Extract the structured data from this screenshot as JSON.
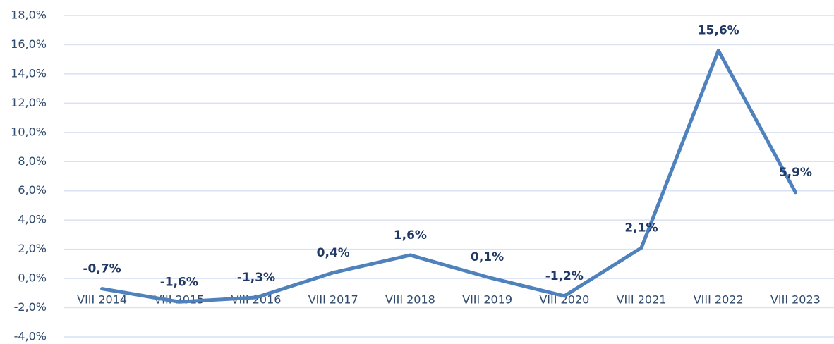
{
  "chart_data": {
    "type": "line",
    "categories": [
      "VIII 2014",
      "VIII 2015",
      "VIII 2016",
      "VIII 2017",
      "VIII 2018",
      "VIII 2019",
      "VIII 2020",
      "VIII 2021",
      "VIII 2022",
      "VIII 2023"
    ],
    "values": [
      -0.7,
      -1.6,
      -1.3,
      0.4,
      1.6,
      0.1,
      -1.2,
      2.1,
      15.6,
      5.9
    ],
    "value_labels": [
      "-0,7%",
      "-1,6%",
      "-1,3%",
      "0,4%",
      "1,6%",
      "0,1%",
      "-1,2%",
      "2,1%",
      "15,6%",
      "5,9%"
    ],
    "color": "#4f81bd",
    "ylim": [
      -4,
      18
    ],
    "yticks": [
      {
        "value": -4,
        "label": "-4,0%"
      },
      {
        "value": -2,
        "label": "-2,0%"
      },
      {
        "value": 0,
        "label": "0,0%"
      },
      {
        "value": 2,
        "label": "2,0%"
      },
      {
        "value": 4,
        "label": "4,0%"
      },
      {
        "value": 6,
        "label": "6,0%"
      },
      {
        "value": 8,
        "label": "8,0%"
      },
      {
        "value": 10,
        "label": "10,0%"
      },
      {
        "value": 12,
        "label": "12,0%"
      },
      {
        "value": 14,
        "label": "14,0%"
      },
      {
        "value": 16,
        "label": "16,0%"
      },
      {
        "value": 18,
        "label": "18,0%"
      }
    ],
    "grid": true
  }
}
